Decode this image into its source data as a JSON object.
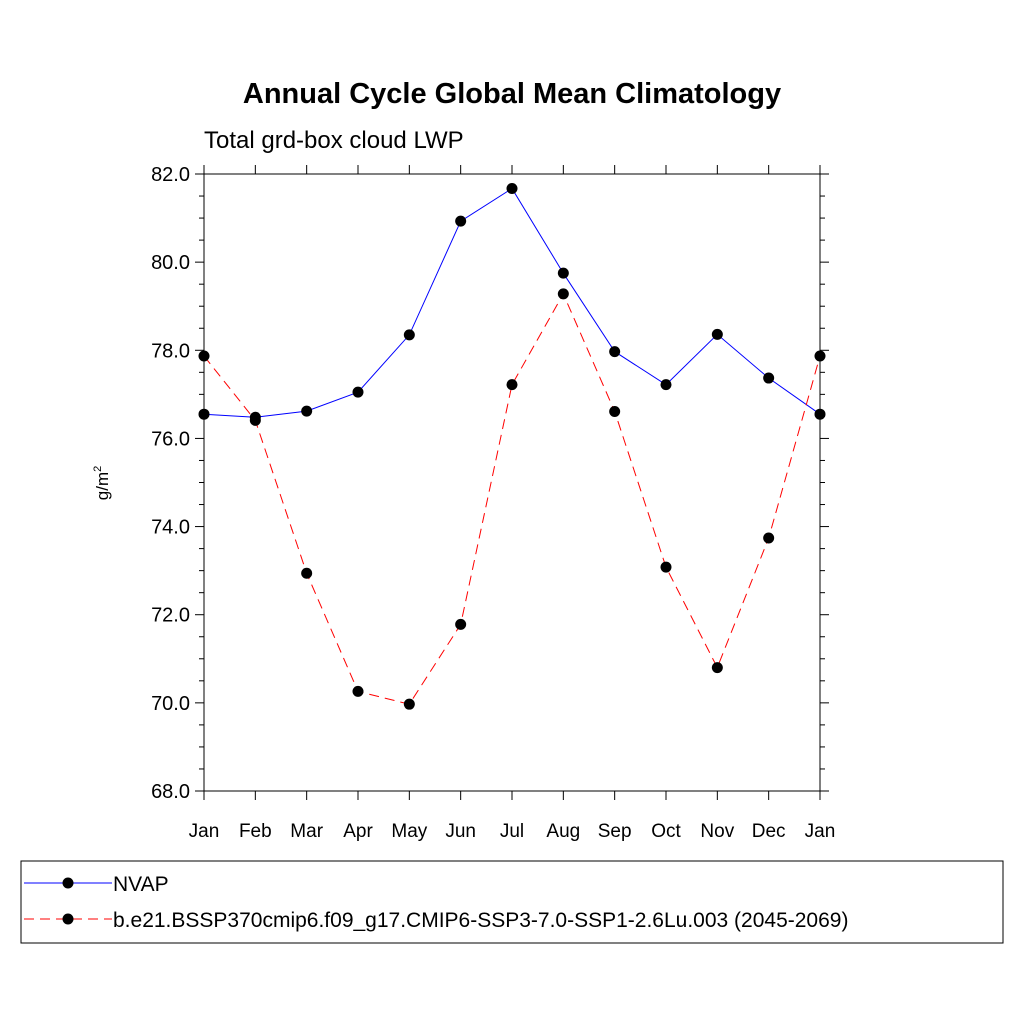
{
  "chart_data": {
    "type": "line",
    "title": "Annual Cycle Global Mean Climatology",
    "subtitle": "Total grd-box cloud LWP",
    "xlabel": "",
    "ylabel_base": "g/m",
    "ylabel_exp": "2",
    "categories": [
      "Jan",
      "Feb",
      "Mar",
      "Apr",
      "May",
      "Jun",
      "Jul",
      "Aug",
      "Sep",
      "Oct",
      "Nov",
      "Dec",
      "Jan"
    ],
    "ylim": [
      68.0,
      82.0
    ],
    "yticks": [
      "68.0",
      "70.0",
      "72.0",
      "74.0",
      "76.0",
      "78.0",
      "80.0",
      "82.0"
    ],
    "grid": false,
    "legend_position": "bottom",
    "series": [
      {
        "name": "NVAP",
        "color": "#0000ff",
        "dash": "solid",
        "values": [
          76.55,
          76.48,
          76.62,
          77.05,
          78.35,
          80.93,
          81.67,
          79.75,
          77.97,
          77.22,
          78.36,
          77.37,
          76.55
        ]
      },
      {
        "name": "b.e21.BSSP370cmip6.f09_g17.CMIP6-SSP3-7.0-SSP1-2.6Lu.003 (2045-2069)",
        "color": "#ff0000",
        "dash": "dashed",
        "values": [
          77.87,
          76.41,
          72.94,
          70.26,
          69.97,
          71.78,
          77.22,
          79.28,
          76.61,
          73.08,
          70.8,
          73.74,
          77.87
        ]
      }
    ]
  }
}
